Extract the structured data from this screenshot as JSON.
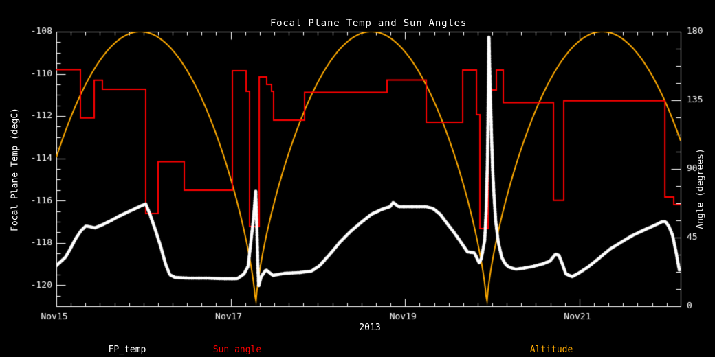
{
  "title": "Focal Plane Temp and Sun Angles",
  "colors": {
    "background": "#000000",
    "axis": "#ffffff",
    "fp_temp": "#ffffff",
    "sun_angle": "#ff0000",
    "altitude": "#ffaa00"
  },
  "chart_data": {
    "type": "line",
    "title": "Focal Plane Temp and Sun Angles",
    "xlabel": "2013",
    "x_axis": {
      "tick_labels": [
        "Nov15",
        "Nov17",
        "Nov19",
        "Nov21"
      ],
      "tick_days": [
        0,
        2,
        4,
        6
      ],
      "range_days": [
        0,
        7.16
      ],
      "minor_step_days": 0.16667
    },
    "y_left": {
      "label": "Focal Plane Temp (degC)",
      "range": [
        -121,
        -108
      ],
      "ticks": [
        -108,
        -110,
        -112,
        -114,
        -116,
        -118,
        -120
      ],
      "minor_step": 0.5
    },
    "y_right": {
      "label": "Angle (degrees)",
      "range": [
        0,
        180
      ],
      "ticks": [
        0,
        45,
        90,
        135,
        180
      ],
      "minor_step": 11.25
    },
    "legend": [
      {
        "label": "FP_temp",
        "color": "#ffffff"
      },
      {
        "label": "Sun angle",
        "color": "#ff0000"
      },
      {
        "label": "Altitude",
        "color": "#ffaa00"
      }
    ],
    "series": [
      {
        "name": "FP_temp",
        "axis": "left",
        "color": "#ffffff",
        "style": "asterisk-line",
        "points": [
          [
            0.0,
            -119.08
          ],
          [
            0.103,
            -118.69
          ],
          [
            0.158,
            -118.3
          ],
          [
            0.221,
            -117.81
          ],
          [
            0.284,
            -117.42
          ],
          [
            0.339,
            -117.2
          ],
          [
            0.442,
            -117.29
          ],
          [
            0.521,
            -117.16
          ],
          [
            0.615,
            -116.97
          ],
          [
            0.733,
            -116.71
          ],
          [
            0.852,
            -116.48
          ],
          [
            0.97,
            -116.25
          ],
          [
            1.025,
            -116.16
          ],
          [
            1.073,
            -116.64
          ],
          [
            1.136,
            -117.39
          ],
          [
            1.199,
            -118.21
          ],
          [
            1.254,
            -119.02
          ],
          [
            1.301,
            -119.51
          ],
          [
            1.364,
            -119.64
          ],
          [
            1.522,
            -119.67
          ],
          [
            1.719,
            -119.67
          ],
          [
            1.917,
            -119.7
          ],
          [
            2.074,
            -119.7
          ],
          [
            2.153,
            -119.47
          ],
          [
            2.2,
            -119.1
          ],
          [
            2.26,
            -116.9
          ],
          [
            2.287,
            -115.55
          ],
          [
            2.3,
            -117.3
          ],
          [
            2.31,
            -118.9
          ],
          [
            2.32,
            -120.05
          ],
          [
            2.35,
            -119.6
          ],
          [
            2.405,
            -119.28
          ],
          [
            2.484,
            -119.54
          ],
          [
            2.626,
            -119.44
          ],
          [
            2.784,
            -119.41
          ],
          [
            2.926,
            -119.34
          ],
          [
            3.02,
            -119.08
          ],
          [
            3.139,
            -118.53
          ],
          [
            3.257,
            -117.95
          ],
          [
            3.375,
            -117.46
          ],
          [
            3.494,
            -117.04
          ],
          [
            3.612,
            -116.65
          ],
          [
            3.73,
            -116.42
          ],
          [
            3.825,
            -116.29
          ],
          [
            3.864,
            -116.09
          ],
          [
            3.927,
            -116.29
          ],
          [
            4.085,
            -116.29
          ],
          [
            4.243,
            -116.29
          ],
          [
            4.322,
            -116.38
          ],
          [
            4.401,
            -116.64
          ],
          [
            4.479,
            -117.07
          ],
          [
            4.558,
            -117.49
          ],
          [
            4.637,
            -117.95
          ],
          [
            4.716,
            -118.43
          ],
          [
            4.795,
            -118.47
          ],
          [
            4.85,
            -118.95
          ],
          [
            4.874,
            -118.75
          ],
          [
            4.913,
            -117.88
          ],
          [
            4.93,
            -116.5
          ],
          [
            4.945,
            -114.0
          ],
          [
            4.955,
            -111.0
          ],
          [
            4.961,
            -108.25
          ],
          [
            4.975,
            -110.5
          ],
          [
            4.99,
            -112.8
          ],
          [
            5.005,
            -114.6
          ],
          [
            5.02,
            -115.8
          ],
          [
            5.04,
            -117.0
          ],
          [
            5.07,
            -118.0
          ],
          [
            5.11,
            -118.7
          ],
          [
            5.15,
            -119.0
          ],
          [
            5.19,
            -119.15
          ],
          [
            5.268,
            -119.25
          ],
          [
            5.347,
            -119.21
          ],
          [
            5.465,
            -119.12
          ],
          [
            5.584,
            -118.99
          ],
          [
            5.663,
            -118.86
          ],
          [
            5.726,
            -118.53
          ],
          [
            5.765,
            -118.6
          ],
          [
            5.805,
            -119.02
          ],
          [
            5.844,
            -119.47
          ],
          [
            5.915,
            -119.6
          ],
          [
            6.002,
            -119.41
          ],
          [
            6.096,
            -119.15
          ],
          [
            6.215,
            -118.76
          ],
          [
            6.349,
            -118.3
          ],
          [
            6.475,
            -117.98
          ],
          [
            6.609,
            -117.65
          ],
          [
            6.743,
            -117.39
          ],
          [
            6.869,
            -117.16
          ],
          [
            6.948,
            -117.0
          ],
          [
            6.987,
            -117.0
          ],
          [
            7.027,
            -117.23
          ],
          [
            7.066,
            -117.62
          ],
          [
            7.105,
            -118.37
          ],
          [
            7.145,
            -119.28
          ]
        ]
      },
      {
        "name": "Sun angle",
        "axis": "right",
        "color": "#ff0000",
        "style": "step",
        "points": [
          [
            0.0,
            155.0
          ],
          [
            0.276,
            123.4
          ],
          [
            0.434,
            148.2
          ],
          [
            0.528,
            142.2
          ],
          [
            1.025,
            60.8
          ],
          [
            1.167,
            94.7
          ],
          [
            1.467,
            76.1
          ],
          [
            2.019,
            154.4
          ],
          [
            2.177,
            140.9
          ],
          [
            2.216,
            52.2
          ],
          [
            2.327,
            150.3
          ],
          [
            2.413,
            145.4
          ],
          [
            2.468,
            140.9
          ],
          [
            2.492,
            122.0
          ],
          [
            2.847,
            140.2
          ],
          [
            3.793,
            148.3
          ],
          [
            4.243,
            120.6
          ],
          [
            4.661,
            154.8
          ],
          [
            4.819,
            125.6
          ],
          [
            4.858,
            50.9
          ],
          [
            4.953,
            141.8
          ],
          [
            5.047,
            154.8
          ],
          [
            5.126,
            133.4
          ],
          [
            5.702,
            69.4
          ],
          [
            5.82,
            134.7
          ],
          [
            6.98,
            71.6
          ],
          [
            7.082,
            66.6
          ],
          [
            7.16,
            66.6
          ]
        ]
      },
      {
        "name": "Altitude",
        "axis": "right",
        "color": "#ffaa00",
        "style": "abs-sine",
        "params": {
          "amplitude": 180,
          "zero_day": 2.287,
          "half_period_days": 2.65,
          "shape_power": 0.7,
          "sample_step_days": 0.01
        }
      }
    ]
  }
}
